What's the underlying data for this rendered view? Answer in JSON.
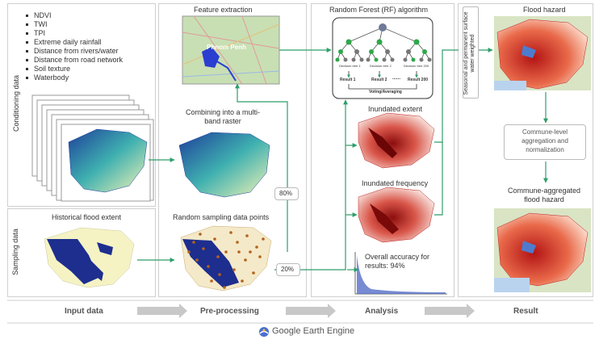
{
  "panels": {
    "conditioning_label": "Conditioning data",
    "sampling_label": "Sampling data",
    "conditioning_list": [
      "NDVI",
      "TWI",
      "TPI",
      "Extreme daily rainfall",
      "Distance from rivers/water",
      "Distance from road network",
      "Soil texture",
      "Waterbody"
    ],
    "historical_flood": "Historical flood extent",
    "feature_extraction": "Feature extraction",
    "combining": "Combining into a multi-band raster",
    "random_sampling": "Random sampling data points",
    "rf_title": "Random Forest (RF) algorithm",
    "inundated_extent": "Inundated extent",
    "inundated_frequency": "Inundated frequency",
    "overall_accuracy": "Overall accuracy for results: 94%",
    "flood_hazard": "Flood hazard",
    "seasonal_weighted": "Seasonal and permanent surface water weighted",
    "commune_aggregation": "Commune-level aggregation and normalization",
    "commune_hazard": "Commune-aggregated flood hazard",
    "split_80": "80%",
    "split_20": "20%",
    "map_label_city": "Phnom Penh"
  },
  "rf": {
    "trees": [
      "Decision tree 1",
      "Decision tree 2",
      "Decision tree 200"
    ],
    "results": [
      "Result 1",
      "Result 2",
      "Result 200"
    ],
    "dots": "......",
    "voting": "Voting/Averaging"
  },
  "stages": [
    "Input data",
    "Pre-processing",
    "Analysis",
    "Result"
  ],
  "footer": {
    "brand": "Google Earth Engine"
  },
  "colors": {
    "arrow": "#2e9e6a",
    "stage_arrow": "#c8c8c8",
    "tree_node_green": "#2ea84a",
    "tree_node_gray": "#777777",
    "tree_root": "#6f7a9a"
  }
}
